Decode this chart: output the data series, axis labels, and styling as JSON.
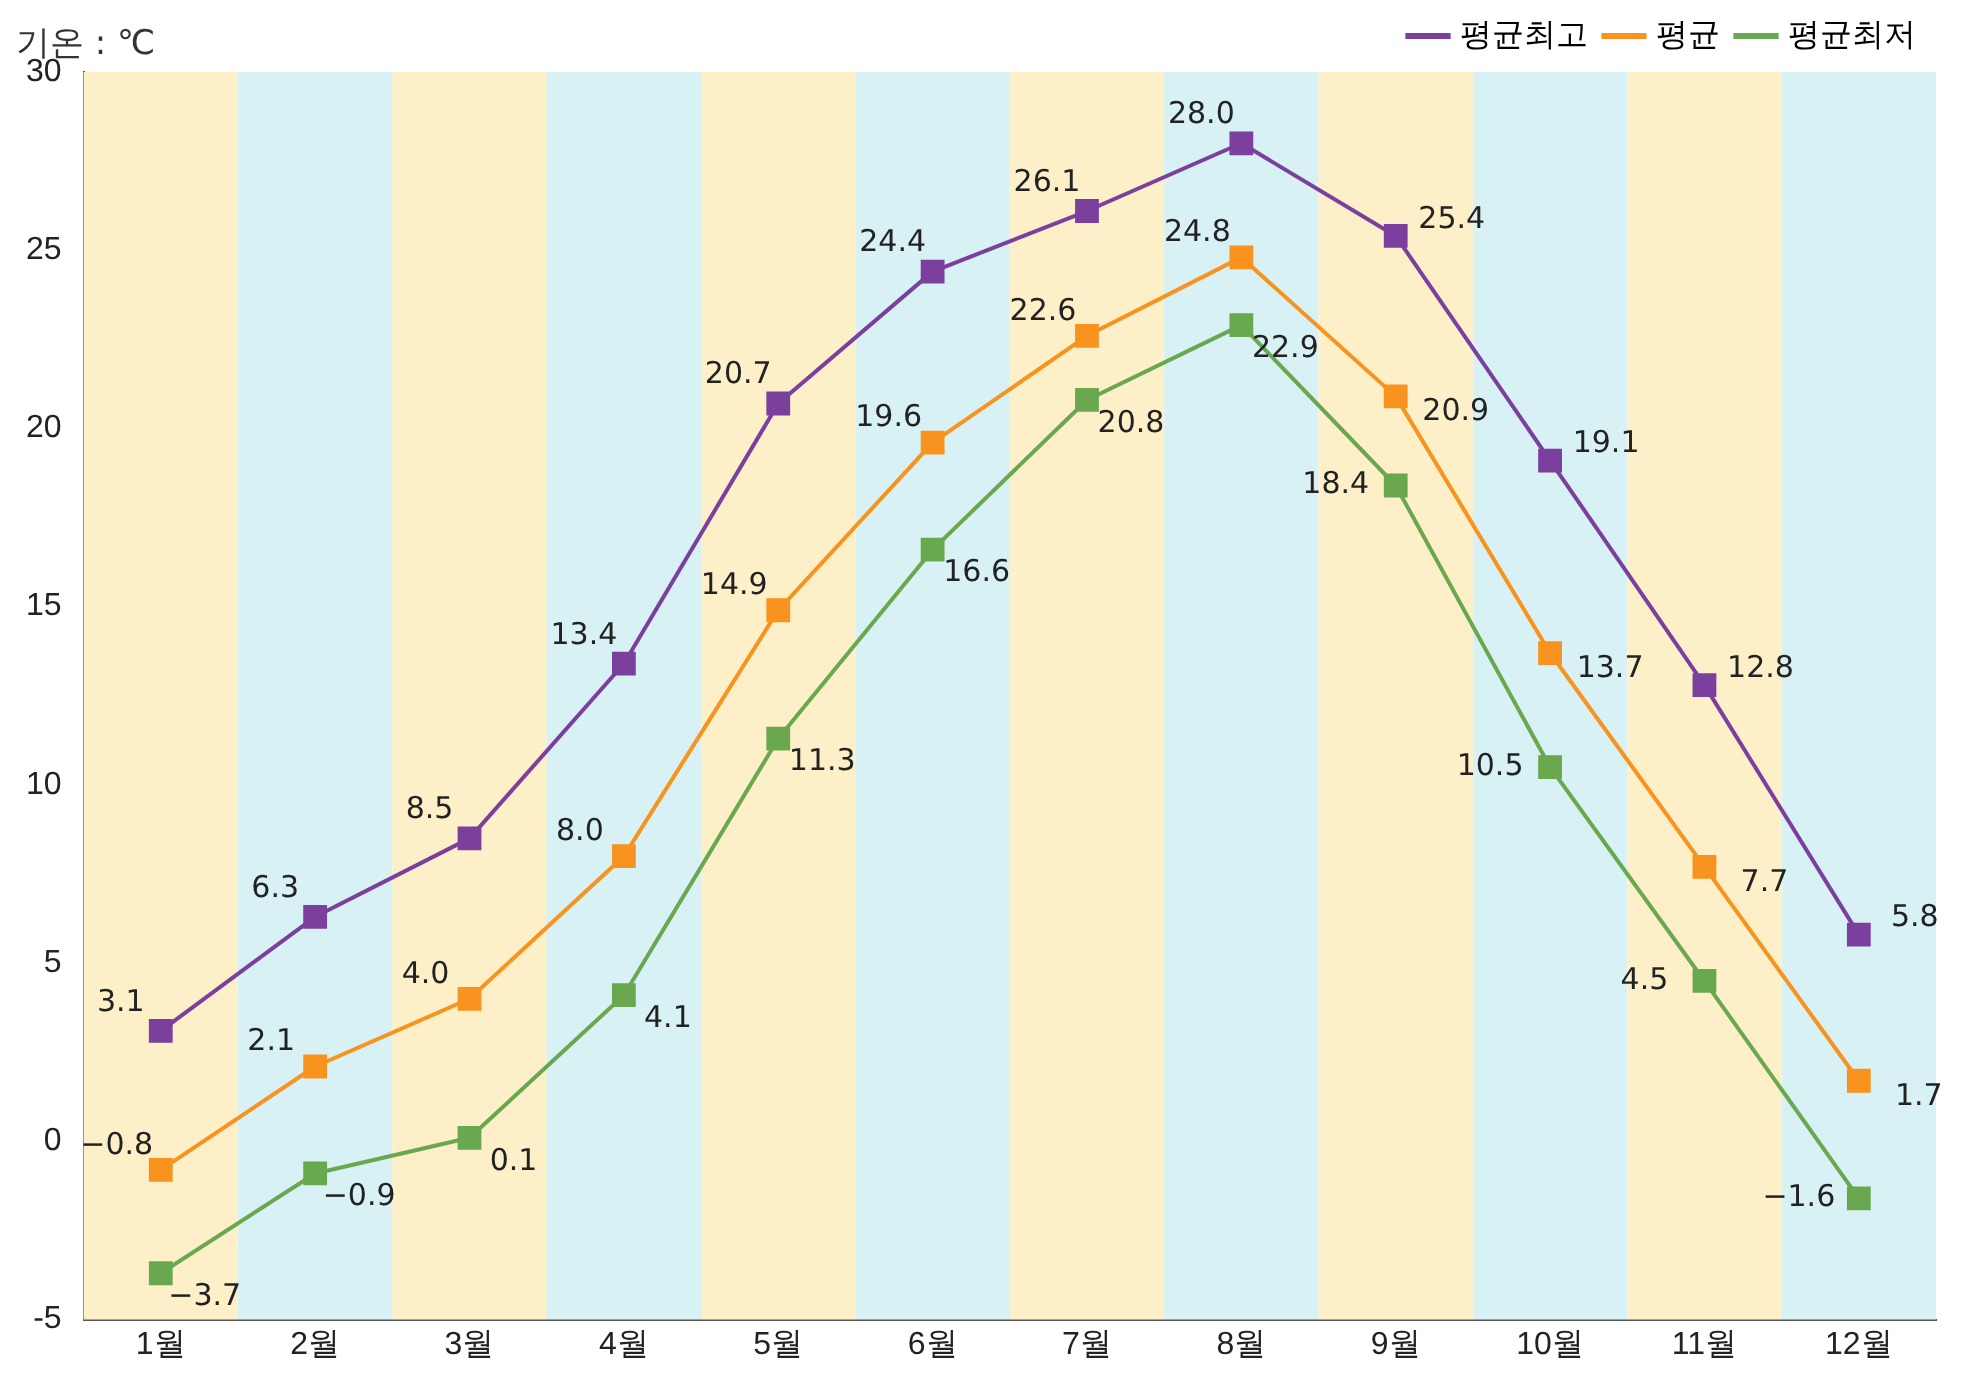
{
  "chart_data": {
    "type": "line",
    "ylabel": "기온 : ℃",
    "categories": [
      "1월",
      "2월",
      "3월",
      "4월",
      "5월",
      "6월",
      "7월",
      "8월",
      "9월",
      "10월",
      "11월",
      "12월"
    ],
    "series": [
      {
        "name": "평균최고",
        "color": "#7b3f9e",
        "values": [
          3.1,
          6.3,
          8.5,
          13.4,
          20.7,
          24.4,
          26.1,
          28.0,
          25.4,
          19.1,
          12.8,
          5.8
        ],
        "value_labels": [
          "3.1",
          "6.3",
          "8.5",
          "13.4",
          "20.7",
          "24.4",
          "26.1",
          "28.0",
          "25.4",
          "19.1",
          "12.8",
          "5.8"
        ]
      },
      {
        "name": "평균",
        "color": "#f7931e",
        "values": [
          -0.8,
          2.1,
          4.0,
          8.0,
          14.9,
          19.6,
          22.6,
          24.8,
          20.9,
          13.7,
          7.7,
          1.7
        ],
        "value_labels": [
          "−0.8",
          "2.1",
          "4.0",
          "8.0",
          "14.9",
          "19.6",
          "22.6",
          "24.8",
          "20.9",
          "13.7",
          "7.7",
          "1.7"
        ]
      },
      {
        "name": "평균최저",
        "color": "#6aa84f",
        "values": [
          -3.7,
          -0.9,
          0.1,
          4.1,
          11.3,
          16.6,
          20.8,
          22.9,
          18.4,
          10.5,
          4.5,
          -1.6
        ],
        "value_labels": [
          "−3.7",
          "−0.9",
          "0.1",
          "4.1",
          "11.3",
          "16.6",
          "20.8",
          "22.9",
          "18.4",
          "10.5",
          "4.5",
          "−1.6"
        ]
      }
    ],
    "ylim": [
      -5,
      30
    ],
    "yticks": [
      -5,
      0,
      5,
      10,
      15,
      20,
      25,
      30
    ],
    "bands": [
      {
        "axis": "x",
        "from": "1월",
        "to": "1월",
        "color": "#fdf0c8"
      },
      {
        "axis": "x",
        "from": "2월",
        "to": "2월",
        "color": "#d8f1f4"
      },
      {
        "axis": "x",
        "from": "3월",
        "to": "3월",
        "color": "#fdf0c8"
      },
      {
        "axis": "x",
        "from": "4월",
        "to": "4월",
        "color": "#d8f1f4"
      },
      {
        "axis": "x",
        "from": "5월",
        "to": "5월",
        "color": "#fdf0c8"
      },
      {
        "axis": "x",
        "from": "6월",
        "to": "6월",
        "color": "#d8f1f4"
      },
      {
        "axis": "x",
        "from": "7월",
        "to": "7월",
        "color": "#fdf0c8"
      },
      {
        "axis": "x",
        "from": "8월",
        "to": "8월",
        "color": "#d8f1f4"
      },
      {
        "axis": "x",
        "from": "9월",
        "to": "9월",
        "color": "#fdf0c8"
      },
      {
        "axis": "x",
        "from": "10월",
        "to": "10월",
        "color": "#d8f1f4"
      },
      {
        "axis": "x",
        "from": "11월",
        "to": "11월",
        "color": "#fdf0c8"
      },
      {
        "axis": "x",
        "from": "12월",
        "to": "12월",
        "color": "#d8f1f4"
      }
    ],
    "grid": false,
    "legend": "top right",
    "marker": "square",
    "line_style": "solid",
    "data_labels": false
  }
}
